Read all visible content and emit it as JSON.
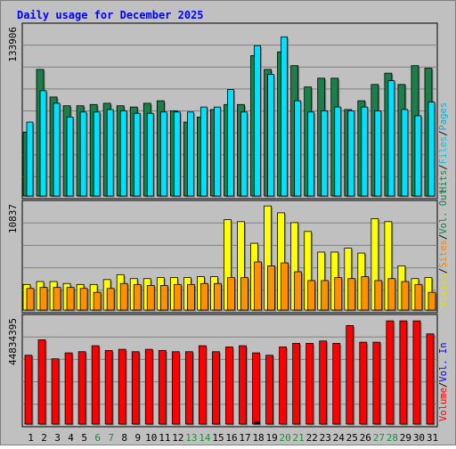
{
  "title": "Daily usage for December 2025",
  "colors": {
    "hits": "#1b7f4a",
    "files": "#00e0ff",
    "pages": "#00b4d8",
    "visits": "#ffff00",
    "sites": "#ff9000",
    "kbytes": "#ff0000",
    "title": "#0000ff",
    "weekend": "#1b8f3a",
    "panel_bg": "#c0c0c0",
    "grid": "#808080"
  },
  "legend": {
    "top": [
      {
        "label": "Hits",
        "color": "#1b7f4a"
      },
      {
        "label": "/",
        "color": "#000000"
      },
      {
        "label": "Files",
        "color": "#00c8e8"
      },
      {
        "label": "/",
        "color": "#000000"
      },
      {
        "label": "Pages",
        "color": "#00b4d8"
      }
    ],
    "middle": [
      {
        "label": "Visits",
        "color": "#e0e000"
      },
      {
        "label": "/",
        "color": "#000000"
      },
      {
        "label": "Sites",
        "color": "#ff8000"
      },
      {
        "label": "/",
        "color": "#000000"
      },
      {
        "label": "Vol. Out",
        "color": "#1b7f4a"
      }
    ],
    "bottom": [
      {
        "label": "Volume",
        "color": "#ff0000"
      },
      {
        "label": "/",
        "color": "#000000"
      },
      {
        "label": "Vol. In",
        "color": "#0000ff"
      }
    ]
  },
  "chart_data": {
    "type": "bar",
    "days": [
      "1",
      "2",
      "3",
      "4",
      "5",
      "6",
      "7",
      "8",
      "9",
      "10",
      "11",
      "12",
      "13",
      "14",
      "15",
      "16",
      "17",
      "18",
      "19",
      "20",
      "21",
      "22",
      "23",
      "24",
      "25",
      "26",
      "27",
      "28",
      "29",
      "30",
      "31"
    ],
    "weekend_days": [
      "6",
      "7",
      "13",
      "14",
      "20",
      "21",
      "27",
      "28"
    ],
    "panels": [
      {
        "name": "hits-files-pages",
        "ymax_label": "133906",
        "ymax": 133906,
        "series": [
          {
            "name": "Hits",
            "values": [
              51000,
              101000,
              79000,
              72000,
              72000,
              73000,
              74000,
              72000,
              71000,
              74000,
              76000,
              68000,
              59000,
              63000,
              69000,
              73000,
              73000,
              112000,
              101000,
              115000,
              104000,
              87000,
              94000,
              94000,
              69000,
              76000,
              89000,
              98000,
              89000,
              104000,
              102000
            ]
          },
          {
            "name": "Files",
            "values": [
              59000,
              84000,
              74000,
              63000,
              67000,
              67000,
              69000,
              68000,
              66000,
              66000,
              67000,
              67000,
              67000,
              71000,
              71000,
              85000,
              67000,
              120000,
              97000,
              127000,
              76000,
              67000,
              68000,
              71000,
              68000,
              71000,
              68000,
              92000,
              69000,
              64000,
              75000
            ]
          },
          {
            "name": "Pages",
            "values": [
              0,
              0,
              0,
              0,
              0,
              0,
              0,
              0,
              0,
              0,
              0,
              0,
              0,
              0,
              0,
              0,
              0,
              0,
              0,
              0,
              0,
              0,
              0,
              0,
              0,
              0,
              0,
              0,
              0,
              0,
              0
            ]
          }
        ]
      },
      {
        "name": "visits-sites",
        "ymax_label": "10837",
        "ymax": 10837,
        "series": [
          {
            "name": "Visits",
            "values": [
              2600,
              2900,
              2900,
              2700,
              2600,
              2600,
              3100,
              3600,
              3200,
              3200,
              3300,
              3300,
              3300,
              3400,
              3400,
              9200,
              9000,
              6800,
              10600,
              9900,
              8900,
              8000,
              5900,
              5900,
              6300,
              5800,
              9300,
              9000,
              4500,
              3200,
              3300
            ]
          },
          {
            "name": "Sites",
            "values": [
              2200,
              2300,
              2300,
              2300,
              2200,
              1800,
              2200,
              2700,
              2600,
              2500,
              2500,
              2600,
              2600,
              2700,
              2700,
              3300,
              3300,
              4900,
              4500,
              4800,
              3900,
              3000,
              3000,
              3300,
              3200,
              3400,
              3000,
              3200,
              2900,
              2600,
              1800
            ]
          }
        ]
      },
      {
        "name": "volume",
        "ymax_label": "44834395",
        "ymax": 44834395,
        "series": [
          {
            "name": "Volume",
            "values": [
              29000000,
              35500000,
              27500000,
              30000000,
              30500000,
              33000000,
              31000000,
              31500000,
              30500000,
              31500000,
              31000000,
              30500000,
              30500000,
              33000000,
              30500000,
              32500000,
              33000000,
              30000000,
              29000000,
              32500000,
              34000000,
              34000000,
              35000000,
              34000000,
              41500000,
              34500000,
              34500000,
              43500000,
              43500000,
              43500000,
              38000000
            ]
          },
          {
            "name": "Vol. In",
            "values": [
              0,
              0,
              0,
              0,
              0,
              0,
              0,
              0,
              0,
              0,
              0,
              0,
              0,
              0,
              0,
              0,
              0,
              1000000,
              0,
              0,
              0,
              0,
              0,
              0,
              0,
              0,
              0,
              0,
              0,
              0,
              0
            ]
          }
        ]
      }
    ],
    "grid": true,
    "legend_placement": "right-vertical"
  }
}
